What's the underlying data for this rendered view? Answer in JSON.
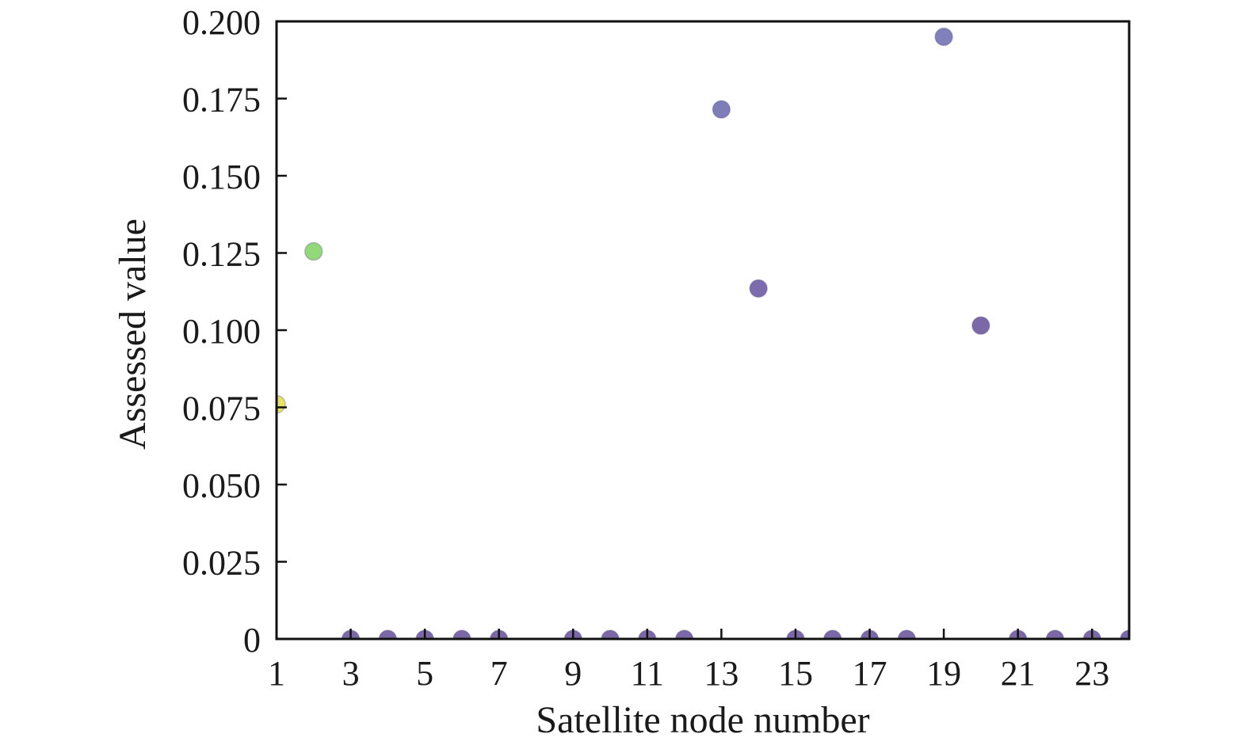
{
  "chart_data": {
    "type": "scatter",
    "title": "",
    "xlabel": "Satellite node number",
    "ylabel": "Assessed value",
    "xlim": [
      1,
      24
    ],
    "ylim": [
      0,
      0.2
    ],
    "xticks": [
      1,
      3,
      5,
      7,
      9,
      11,
      13,
      15,
      17,
      19,
      21,
      23
    ],
    "xtick_labels": [
      "1",
      "3",
      "5",
      "7",
      "9",
      "11",
      "13",
      "15",
      "17",
      "19",
      "21",
      "23"
    ],
    "yticks": [
      0,
      0.025,
      0.05,
      0.075,
      0.1,
      0.125,
      0.15,
      0.175,
      0.2
    ],
    "ytick_labels": [
      "0",
      "0.025",
      "0.050",
      "0.075",
      "0.100",
      "0.125",
      "0.150",
      "0.175",
      "0.200"
    ],
    "grid": false,
    "legend": "none",
    "points": [
      {
        "x": 1,
        "y": 0.076,
        "color": "#e8e26a"
      },
      {
        "x": 2,
        "y": 0.1255,
        "color": "#93d97a"
      },
      {
        "x": 3,
        "y": 0.0,
        "color": "#7b68a6"
      },
      {
        "x": 4,
        "y": 0.0,
        "color": "#7b68a6"
      },
      {
        "x": 5,
        "y": 0.0,
        "color": "#7b68a6"
      },
      {
        "x": 6,
        "y": 0.0,
        "color": "#7b68a6"
      },
      {
        "x": 7,
        "y": 0.0,
        "color": "#7b68a6"
      },
      {
        "x": 9,
        "y": 0.0,
        "color": "#7b68a6"
      },
      {
        "x": 10,
        "y": 0.0,
        "color": "#7b68a6"
      },
      {
        "x": 11,
        "y": 0.0,
        "color": "#7b68a6"
      },
      {
        "x": 12,
        "y": 0.0,
        "color": "#7b68a6"
      },
      {
        "x": 13,
        "y": 0.1715,
        "color": "#7f7db8"
      },
      {
        "x": 14,
        "y": 0.1135,
        "color": "#7c6bad"
      },
      {
        "x": 15,
        "y": 0.0,
        "color": "#7b68a6"
      },
      {
        "x": 16,
        "y": 0.0,
        "color": "#7b68a6"
      },
      {
        "x": 17,
        "y": 0.0,
        "color": "#7b68a6"
      },
      {
        "x": 18,
        "y": 0.0,
        "color": "#7b68a6"
      },
      {
        "x": 19,
        "y": 0.195,
        "color": "#8080ba"
      },
      {
        "x": 20,
        "y": 0.1015,
        "color": "#7b68a6"
      },
      {
        "x": 21,
        "y": 0.0,
        "color": "#7b68a6"
      },
      {
        "x": 22,
        "y": 0.0,
        "color": "#7b68a6"
      },
      {
        "x": 23,
        "y": 0.0,
        "color": "#7b68a6"
      },
      {
        "x": 24,
        "y": 0.0,
        "color": "#7b68a6"
      }
    ]
  }
}
